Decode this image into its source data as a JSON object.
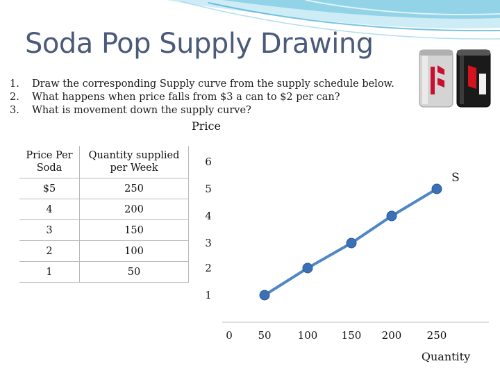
{
  "slide": {
    "title": "Soda Pop Supply Drawing",
    "questions": [
      {
        "num": "1.",
        "text": "Draw the corresponding Supply curve from the supply schedule below."
      },
      {
        "num": "2.",
        "text": "What happens when price falls from $3 a can to $2 per can?"
      },
      {
        "num": "3.",
        "text": "What is movement down the supply curve?"
      }
    ],
    "image_cans": [
      {
        "label": "Diet Coke",
        "color": "#c8c8c8"
      },
      {
        "label": "Coca-Cola zero",
        "color": "#1a1a1a"
      }
    ]
  },
  "table": {
    "headers": [
      "Price Per Soda",
      "Quantity supplied per Week"
    ],
    "rows": [
      [
        "$5",
        "250"
      ],
      [
        "4",
        "200"
      ],
      [
        "3",
        "150"
      ],
      [
        "2",
        "100"
      ],
      [
        "1",
        "50"
      ]
    ]
  },
  "colors": {
    "line": "#4f87c4",
    "marker": "#3b6fb6",
    "axis": "#bfbfbf",
    "title": "#4a5a78",
    "banner": "#6cc3e0"
  },
  "chart_data": {
    "type": "line",
    "ylabel": "Price",
    "xlabel": "Quantity",
    "series": [
      {
        "name": "S",
        "x": [
          50,
          100,
          150,
          200,
          250
        ],
        "y": [
          1,
          2,
          3,
          4,
          5
        ]
      }
    ],
    "x_ticks": [
      "0",
      "50",
      "100",
      "150",
      "200",
      "250"
    ],
    "y_ticks": [
      "1",
      "2",
      "3",
      "4",
      "5",
      "6"
    ],
    "xlim": [
      0,
      250
    ],
    "ylim": [
      0,
      6
    ],
    "grid": false,
    "legend": "none"
  }
}
